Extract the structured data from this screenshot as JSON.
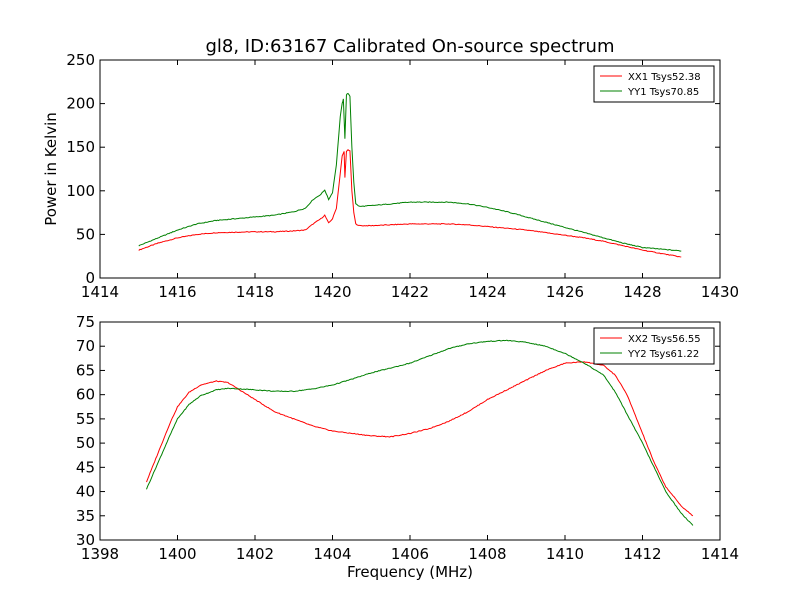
{
  "chart_data": [
    {
      "type": "line",
      "title": "gl8, ID:63167 Calibrated On-source spectrum",
      "xlabel": "",
      "ylabel": "Power in Kelvin",
      "xlim": [
        1414,
        1430
      ],
      "ylim": [
        0,
        250
      ],
      "xticks": [
        "1414",
        "1416",
        "1418",
        "1420",
        "1422",
        "1424",
        "1426",
        "1428",
        "1430"
      ],
      "yticks": [
        "0",
        "50",
        "100",
        "150",
        "200",
        "250"
      ],
      "legend_position": "top-right",
      "grid": false,
      "series": [
        {
          "name": "XX1 Tsys52.38",
          "color": "#ff0000",
          "x": [
            1415.0,
            1415.5,
            1416.0,
            1416.5,
            1417.0,
            1417.5,
            1418.0,
            1418.5,
            1419.0,
            1419.3,
            1419.5,
            1419.7,
            1419.8,
            1419.9,
            1420.0,
            1420.1,
            1420.2,
            1420.25,
            1420.3,
            1420.32,
            1420.36,
            1420.4,
            1420.45,
            1420.5,
            1420.55,
            1420.6,
            1420.7,
            1421.0,
            1421.5,
            1422.0,
            1422.5,
            1423.0,
            1423.5,
            1424.0,
            1424.5,
            1425.0,
            1425.5,
            1426.0,
            1426.5,
            1427.0,
            1427.5,
            1428.0,
            1428.5,
            1429.0
          ],
          "y": [
            32,
            40,
            46,
            50,
            52,
            52.5,
            53,
            53,
            54,
            55,
            62,
            68,
            72,
            63,
            68,
            80,
            120,
            140,
            145,
            115,
            145,
            147,
            146,
            100,
            75,
            62,
            60,
            60,
            61,
            62,
            62,
            62,
            61,
            59,
            57,
            55,
            52,
            49,
            46,
            42,
            37,
            32,
            28,
            24
          ]
        },
        {
          "name": "YY1 Tsys70.85",
          "color": "#008000",
          "x": [
            1415.0,
            1415.5,
            1416.0,
            1416.5,
            1417.0,
            1417.5,
            1418.0,
            1418.5,
            1419.0,
            1419.3,
            1419.5,
            1419.7,
            1419.8,
            1419.9,
            1420.0,
            1420.1,
            1420.2,
            1420.25,
            1420.28,
            1420.32,
            1420.36,
            1420.4,
            1420.45,
            1420.5,
            1420.55,
            1420.6,
            1420.7,
            1421.0,
            1421.5,
            1422.0,
            1422.5,
            1423.0,
            1423.5,
            1424.0,
            1424.5,
            1425.0,
            1425.5,
            1426.0,
            1426.5,
            1427.0,
            1427.5,
            1428.0,
            1428.5,
            1429.0
          ],
          "y": [
            37,
            46,
            55,
            62,
            66,
            68,
            70,
            72,
            76,
            80,
            90,
            96,
            101,
            90,
            98,
            130,
            185,
            200,
            205,
            160,
            210,
            212,
            208,
            150,
            110,
            85,
            82,
            83,
            85,
            87,
            87,
            87,
            85,
            81,
            76,
            70,
            64,
            58,
            52,
            46,
            40,
            35,
            33,
            31
          ]
        }
      ]
    },
    {
      "type": "line",
      "title": "",
      "xlabel": "Frequency (MHz)",
      "ylabel": "",
      "xlim": [
        1398,
        1414
      ],
      "ylim": [
        30,
        75
      ],
      "xticks": [
        "1398",
        "1400",
        "1402",
        "1404",
        "1406",
        "1408",
        "1410",
        "1412",
        "1414"
      ],
      "yticks": [
        "30",
        "35",
        "40",
        "45",
        "50",
        "55",
        "60",
        "65",
        "70",
        "75"
      ],
      "legend_position": "top-right",
      "grid": false,
      "series": [
        {
          "name": "XX2 Tsys56.55",
          "color": "#ff0000",
          "x": [
            1399.2,
            1399.5,
            1399.8,
            1400.0,
            1400.3,
            1400.6,
            1401.0,
            1401.3,
            1401.6,
            1402.0,
            1402.5,
            1403.0,
            1403.5,
            1404.0,
            1404.5,
            1405.0,
            1405.5,
            1406.0,
            1406.5,
            1407.0,
            1407.5,
            1408.0,
            1408.5,
            1409.0,
            1409.5,
            1410.0,
            1410.5,
            1411.0,
            1411.3,
            1411.6,
            1412.0,
            1412.3,
            1412.6,
            1413.0,
            1413.3
          ],
          "y": [
            42,
            48,
            54,
            57.5,
            60.5,
            62,
            62.8,
            62.5,
            61,
            59,
            56.5,
            55,
            53.5,
            52.5,
            52,
            51.5,
            51.3,
            52,
            53,
            54.5,
            56.5,
            59,
            61,
            63,
            65,
            66.5,
            66.8,
            66,
            64,
            60,
            52,
            46,
            41,
            37,
            35
          ]
        },
        {
          "name": "YY2 Tsys61.22",
          "color": "#008000",
          "x": [
            1399.2,
            1399.5,
            1399.8,
            1400.0,
            1400.3,
            1400.6,
            1401.0,
            1401.3,
            1401.6,
            1402.0,
            1402.5,
            1403.0,
            1403.5,
            1404.0,
            1404.5,
            1405.0,
            1405.5,
            1406.0,
            1406.5,
            1407.0,
            1407.5,
            1408.0,
            1408.5,
            1409.0,
            1409.5,
            1410.0,
            1410.5,
            1411.0,
            1411.3,
            1411.6,
            1412.0,
            1412.3,
            1412.6,
            1413.0,
            1413.3
          ],
          "y": [
            40.5,
            46,
            51.5,
            55,
            58,
            59.8,
            61,
            61.3,
            61.2,
            61,
            60.7,
            60.7,
            61.2,
            62,
            63.2,
            64.5,
            65.5,
            66.5,
            68,
            69.5,
            70.5,
            71,
            71.2,
            70.8,
            70,
            68.5,
            66.5,
            64,
            60.5,
            56,
            50,
            45,
            40,
            35.5,
            33
          ]
        }
      ]
    }
  ]
}
